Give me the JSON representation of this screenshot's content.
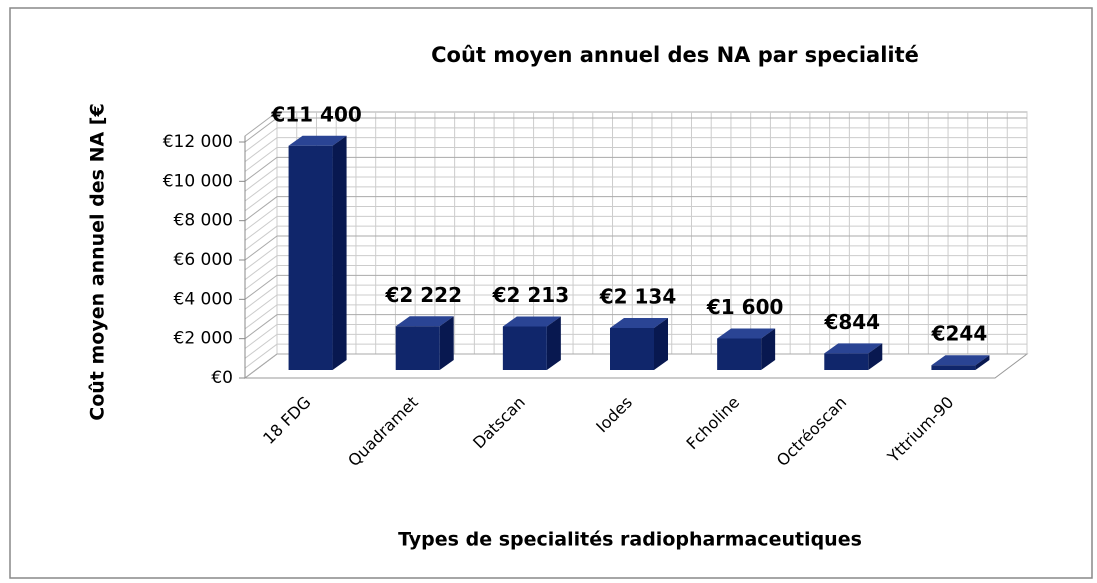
{
  "chart_data": {
    "type": "bar3d",
    "title": "Coût  moyen  annuel des NA par specialité",
    "y_axis_label": "Coût moyen annuel  des NA [€",
    "x_axis_label": "Types de specialités radiopharmaceutiques",
    "categories": [
      "18 FDG",
      "Quadramet",
      "Datscan",
      "Iodes",
      "Fcholine",
      "Octréoscan",
      "Yttrium-90"
    ],
    "values": [
      11400,
      2222,
      2213,
      2134,
      1600,
      844,
      244
    ],
    "value_labels": [
      "€11 400",
      "€2 222",
      "€2 213",
      "€2 134",
      "€1 600",
      "€844",
      "€244"
    ],
    "color": "#10266b",
    "ylim": [
      0,
      12000
    ],
    "yticks": [
      {
        "value": 0,
        "label": "€0"
      },
      {
        "value": 2000,
        "label": "€2 000"
      },
      {
        "value": 4000,
        "label": "€4 000"
      },
      {
        "value": 6000,
        "label": "€6 000"
      },
      {
        "value": 8000,
        "label": "€8 000"
      },
      {
        "value": 10000,
        "label": "€10 000"
      },
      {
        "value": 12000,
        "label": "€12 000"
      }
    ],
    "grid": true
  }
}
